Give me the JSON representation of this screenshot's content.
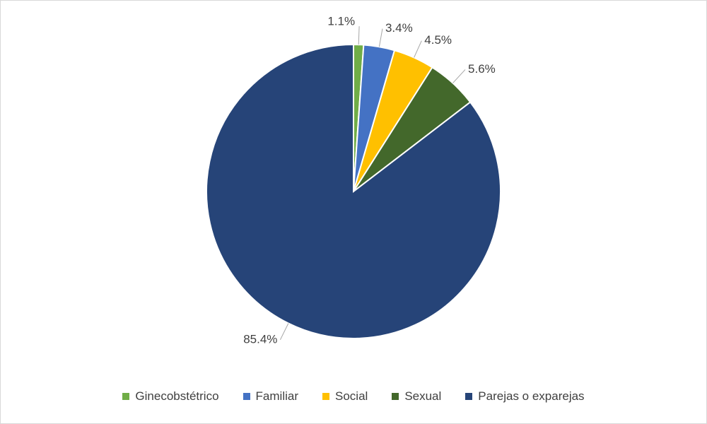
{
  "chart_data": {
    "type": "pie",
    "categories": [
      "Ginecobstétrico",
      "Familiar",
      "Social",
      "Sexual",
      "Parejas o exparejas"
    ],
    "values": [
      1.1,
      3.4,
      4.5,
      5.6,
      85.4
    ],
    "value_labels": [
      "1.1%",
      "3.4%",
      "4.5%",
      "5.6%",
      "85.4%"
    ],
    "colors": [
      "#70ad47",
      "#4472c4",
      "#ffc000",
      "#43682b",
      "#264478"
    ],
    "legend": "bottom"
  }
}
